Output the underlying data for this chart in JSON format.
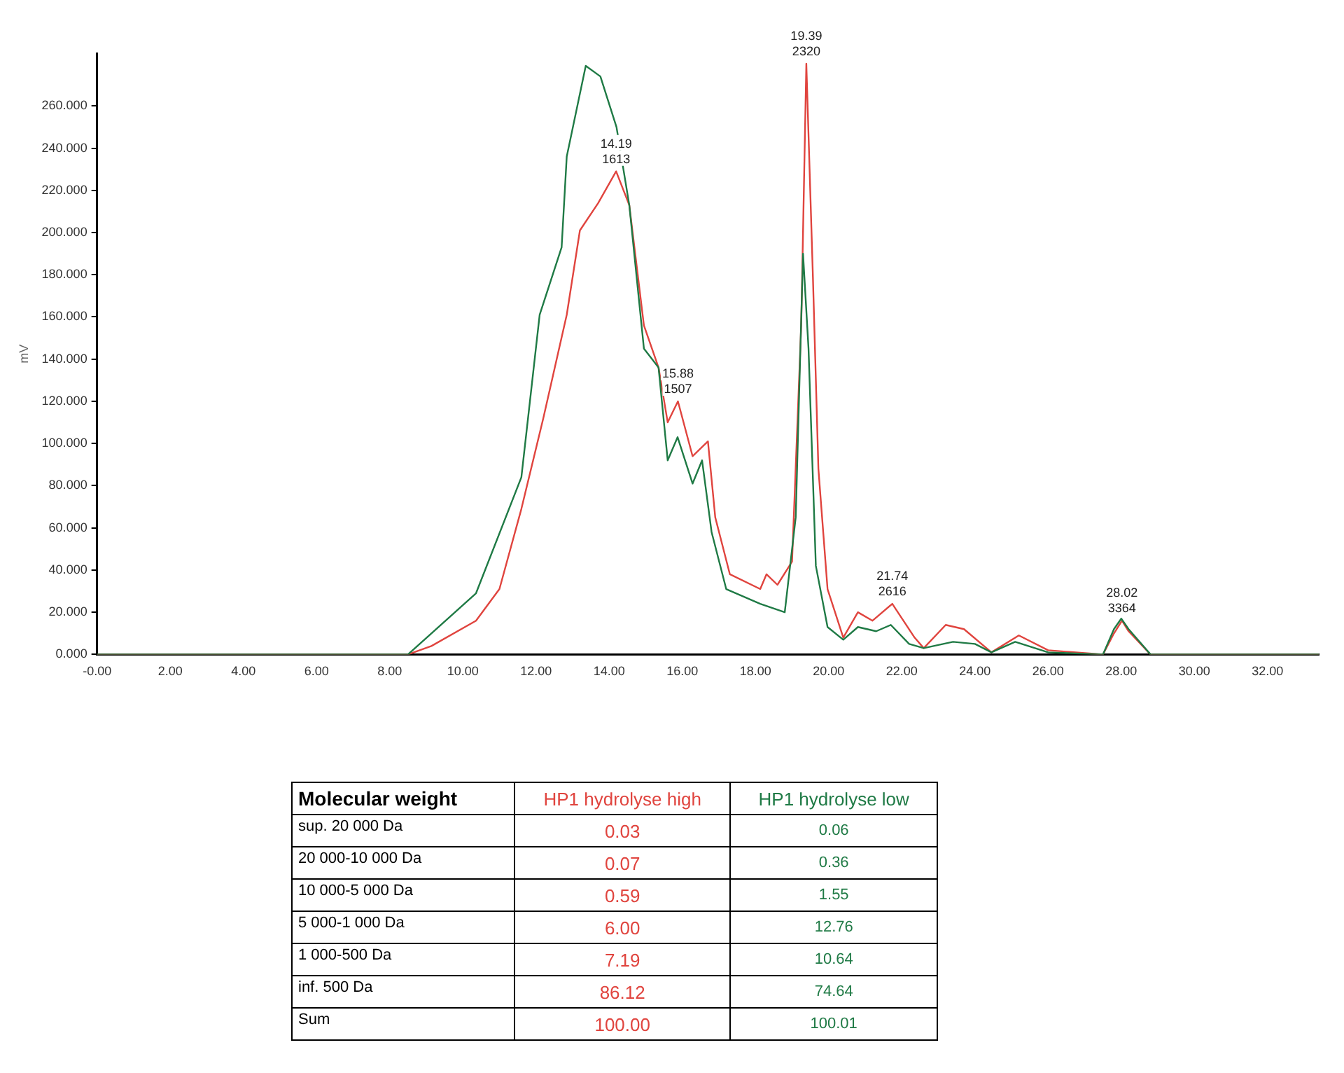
{
  "chart_data": [
    {
      "type": "line",
      "ylabel": "mV",
      "xlim": [
        0,
        33.4
      ],
      "ylim": [
        0,
        285
      ],
      "xticks": [
        {
          "value": 0,
          "label": "-0.00"
        },
        {
          "value": 2,
          "label": "2.00"
        },
        {
          "value": 4,
          "label": "4.00"
        },
        {
          "value": 6,
          "label": "6.00"
        },
        {
          "value": 8,
          "label": "8.00"
        },
        {
          "value": 10,
          "label": "10.00"
        },
        {
          "value": 12,
          "label": "12.00"
        },
        {
          "value": 14,
          "label": "14.00"
        },
        {
          "value": 16,
          "label": "16.00"
        },
        {
          "value": 18,
          "label": "18.00"
        },
        {
          "value": 20,
          "label": "20.00"
        },
        {
          "value": 22,
          "label": "22.00"
        },
        {
          "value": 24,
          "label": "24.00"
        },
        {
          "value": 26,
          "label": "26.00"
        },
        {
          "value": 28,
          "label": "28.00"
        },
        {
          "value": 30,
          "label": "30.00"
        },
        {
          "value": 32,
          "label": "32.00"
        }
      ],
      "yticks": [
        {
          "value": 0,
          "label": "0.000"
        },
        {
          "value": 20,
          "label": "20.000"
        },
        {
          "value": 40,
          "label": "40.000"
        },
        {
          "value": 60,
          "label": "60.000"
        },
        {
          "value": 80,
          "label": "80.000"
        },
        {
          "value": 100,
          "label": "100.000"
        },
        {
          "value": 120,
          "label": "120.000"
        },
        {
          "value": 140,
          "label": "140.000"
        },
        {
          "value": 160,
          "label": "160.000"
        },
        {
          "value": 180,
          "label": "180.000"
        },
        {
          "value": 200,
          "label": "200.000"
        },
        {
          "value": 220,
          "label": "220.000"
        },
        {
          "value": 240,
          "label": "240.000"
        },
        {
          "value": 260,
          "label": "260.000"
        }
      ],
      "grid": false,
      "legend": false,
      "marker": "none",
      "line_style": "solid",
      "series": [
        {
          "color": "#1f7a45",
          "x": [
            0,
            8.5,
            9.14,
            10.36,
            11.6,
            12.1,
            12.7,
            12.84,
            13.36,
            13.76,
            14.2,
            14.55,
            14.95,
            15.35,
            15.6,
            15.87,
            16.28,
            16.54,
            16.8,
            17.2,
            18.13,
            18.8,
            19.1,
            19.3,
            19.45,
            19.65,
            19.97,
            20.4,
            20.8,
            21.3,
            21.7,
            22.2,
            22.6,
            23.4,
            24,
            24.45,
            25.1,
            26,
            27.5,
            27.8,
            28,
            28.2,
            28.8,
            33.4
          ],
          "values": [
            0,
            0,
            10,
            29,
            84,
            161,
            193,
            236,
            279,
            274,
            250,
            213,
            145,
            136,
            92,
            103,
            81,
            92,
            58,
            31,
            24,
            20,
            65,
            190,
            145,
            42,
            13,
            7,
            13,
            11,
            14,
            5,
            3,
            6,
            5,
            1,
            6,
            1,
            0,
            12,
            17,
            12,
            0,
            0
          ]
        },
        {
          "color": "#e0443e",
          "x": [
            0,
            8.5,
            9.14,
            10.36,
            11,
            11.6,
            12.2,
            12.84,
            13.2,
            13.7,
            14.19,
            14.55,
            14.95,
            15.35,
            15.6,
            15.88,
            16.28,
            16.7,
            16.9,
            17.3,
            18.13,
            18.3,
            18.6,
            19,
            19.25,
            19.39,
            19.57,
            19.72,
            19.97,
            20.4,
            20.8,
            21.2,
            21.74,
            22.35,
            22.6,
            23.2,
            23.7,
            24.45,
            25.2,
            26,
            27.5,
            27.8,
            28.02,
            28.2,
            28.8,
            33.4
          ],
          "values": [
            0,
            0,
            4,
            16,
            31,
            69,
            112,
            161,
            201,
            214,
            229,
            213,
            156,
            136,
            110,
            120,
            94,
            101,
            65,
            38,
            31,
            38,
            33,
            44,
            156,
            280,
            179,
            88,
            31,
            8,
            20,
            16,
            24,
            8,
            3,
            14,
            12,
            1,
            9,
            2,
            0,
            10,
            16,
            11,
            0,
            0
          ]
        }
      ],
      "annotations": [
        {
          "text": "14.19\n1613",
          "x": 14.19,
          "y": 229
        },
        {
          "text": "15.88\n1507",
          "x": 15.88,
          "y": 120
        },
        {
          "text": "19.39\n2320",
          "x": 19.39,
          "y": 280
        },
        {
          "text": "21.74\n2616",
          "x": 21.74,
          "y": 24
        },
        {
          "text": "28.02\n3364",
          "x": 28.02,
          "y": 16
        }
      ]
    },
    {
      "type": "other",
      "xlabel": "Molecular weight",
      "categories": [
        "sup. 20 000 Da",
        "20 000-10 000 Da",
        "10 000-5 000 Da",
        "5 000-1 000 Da",
        "1 000-500 Da",
        "inf. 500 Da",
        "Sum"
      ],
      "series": [
        {
          "name": "HP1 hydrolyse high",
          "color": "#e0443e",
          "values": [
            0.03,
            0.07,
            0.59,
            6,
            7.19,
            86.12,
            100
          ],
          "value_labels": [
            "0.03",
            "0.07",
            "0.59",
            "6.00",
            "7.19",
            "86.12",
            "100.00"
          ]
        },
        {
          "name": "HP1 hydrolyse low",
          "color": "#1f7a45",
          "values": [
            0.06,
            0.36,
            1.55,
            12.76,
            10.64,
            74.64,
            100.01
          ]
        }
      ],
      "data_labels": true
    }
  ]
}
